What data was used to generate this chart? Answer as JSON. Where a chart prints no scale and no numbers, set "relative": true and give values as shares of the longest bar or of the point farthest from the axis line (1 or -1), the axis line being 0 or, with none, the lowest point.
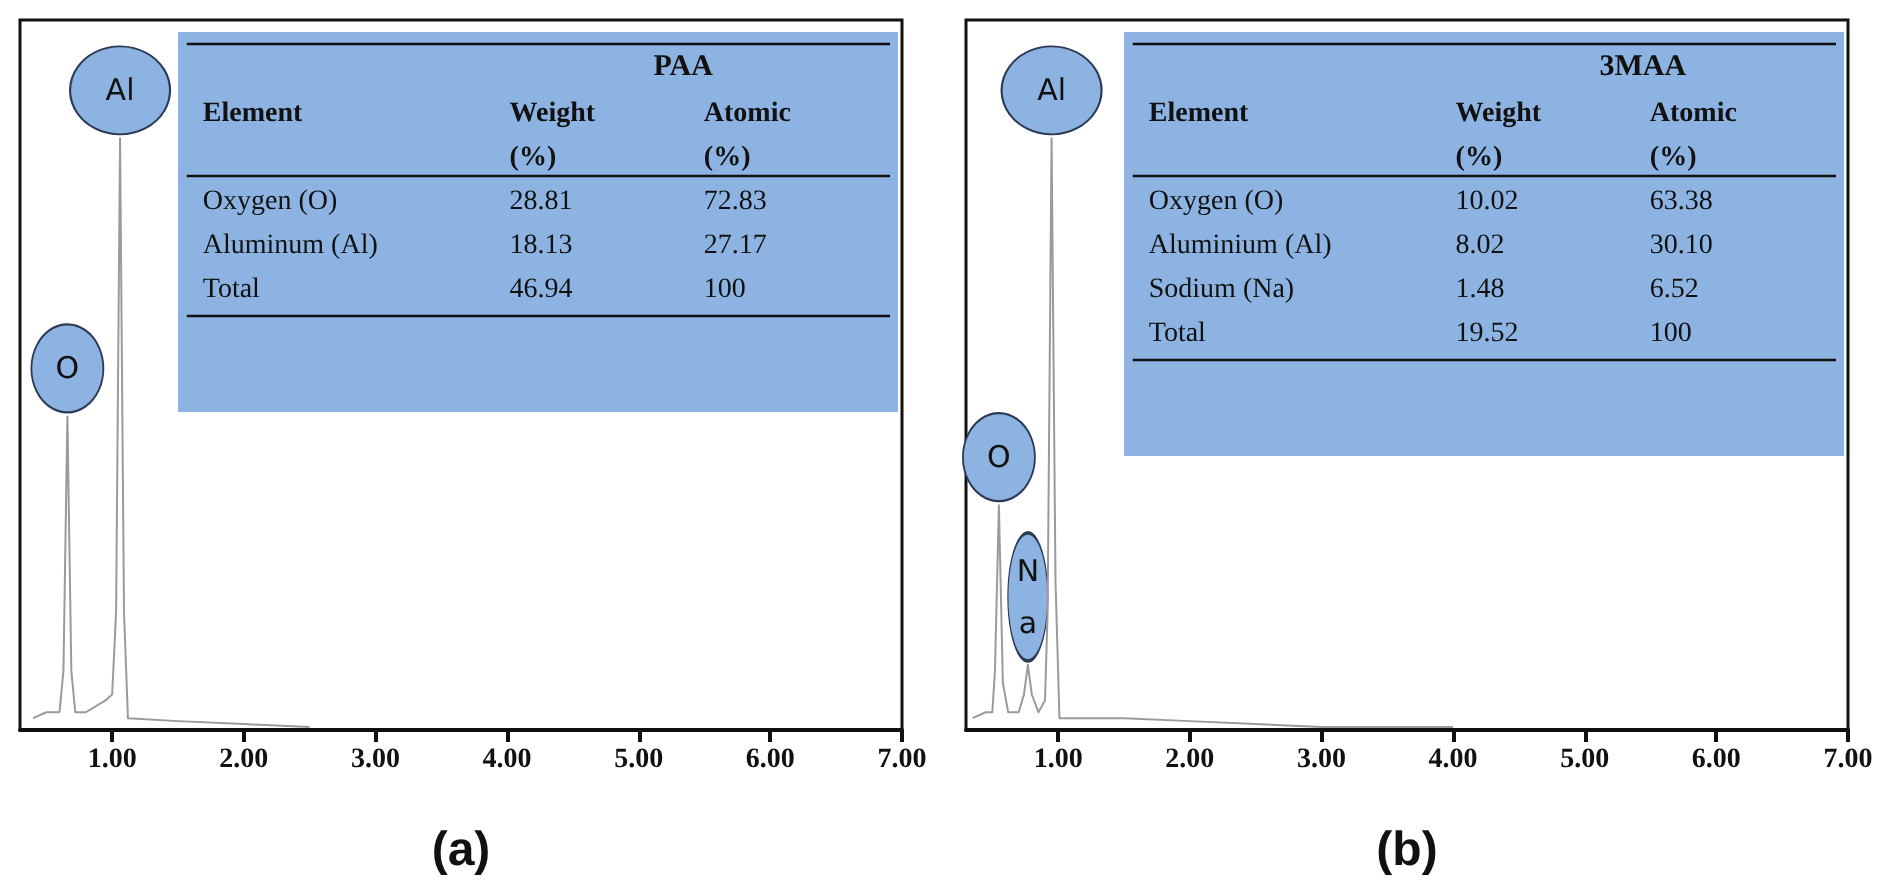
{
  "chart_data": [
    {
      "type": "line",
      "relative": true,
      "xlabel": "(a)",
      "color": "#9a9a9a",
      "xlim": [
        0.3,
        7.0
      ],
      "xticks": [
        {
          "value": 1,
          "label": "1.00"
        },
        {
          "value": 2,
          "label": "2.00"
        },
        {
          "value": 3,
          "label": "3.00"
        },
        {
          "value": 4,
          "label": "4.00"
        },
        {
          "value": 5,
          "label": "5.00"
        },
        {
          "value": 6,
          "label": "6.00"
        },
        {
          "value": 7,
          "label": "7.00"
        }
      ],
      "x": [
        0.4,
        0.5,
        0.6,
        0.63,
        0.66,
        0.69,
        0.72,
        0.8,
        0.95,
        1.0,
        1.03,
        1.06,
        1.09,
        1.12,
        1.5,
        2.0,
        2.5
      ],
      "values": [
        0.02,
        0.03,
        0.03,
        0.1,
        0.53,
        0.1,
        0.03,
        0.03,
        0.05,
        0.06,
        0.2,
        1,
        0.2,
        0.02,
        0.015,
        0.01,
        0.005
      ],
      "annotations": [
        {
          "text": "O",
          "x": 0.66,
          "y": 0.53
        },
        {
          "text": "Al",
          "x": 1.06,
          "y": 1
        },
        "PAA",
        "Element",
        "Weight\n(%)",
        "Atomic\n(%)",
        "Oxygen (O)",
        "28.81",
        "72.83",
        "Aluminum (Al)",
        "18.13",
        "27.17",
        "Total",
        "46.94",
        "100"
      ]
    },
    {
      "type": "line",
      "relative": true,
      "xlabel": "(b)",
      "color": "#9a9a9a",
      "xlim": [
        0.3,
        7.0
      ],
      "xticks": [
        {
          "value": 1,
          "label": "1.00"
        },
        {
          "value": 2,
          "label": "2.00"
        },
        {
          "value": 3,
          "label": "3.00"
        },
        {
          "value": 4,
          "label": "4.00"
        },
        {
          "value": 5,
          "label": "5.00"
        },
        {
          "value": 6,
          "label": "6.00"
        },
        {
          "value": 7,
          "label": "7.00"
        }
      ],
      "x": [
        0.35,
        0.45,
        0.5,
        0.52,
        0.55,
        0.58,
        0.62,
        0.7,
        0.74,
        0.77,
        0.8,
        0.85,
        0.9,
        0.92,
        0.95,
        0.98,
        1.01,
        1.5,
        2.0,
        2.5,
        3.0,
        4.0
      ],
      "values": [
        0.02,
        0.03,
        0.03,
        0.1,
        0.38,
        0.08,
        0.03,
        0.03,
        0.06,
        0.11,
        0.06,
        0.03,
        0.05,
        0.2,
        1,
        0.25,
        0.02,
        0.02,
        0.015,
        0.01,
        0.005,
        0.005
      ],
      "annotations": [
        {
          "text": "O",
          "x": 0.55,
          "y": 0.38
        },
        {
          "text": "Na",
          "x": 0.77,
          "y": 0.11
        },
        {
          "text": "Al",
          "x": 0.95,
          "y": 1
        },
        "3MAA",
        "Element",
        "Weight\n(%)",
        "Atomic\n(%)",
        "Oxygen (O)",
        "10.02",
        "63.38",
        "Aluminium (Al)",
        "8.02",
        "30.10",
        "Sodium (Na)",
        "1.48",
        "6.52",
        "Total",
        "19.52",
        "100"
      ]
    }
  ]
}
